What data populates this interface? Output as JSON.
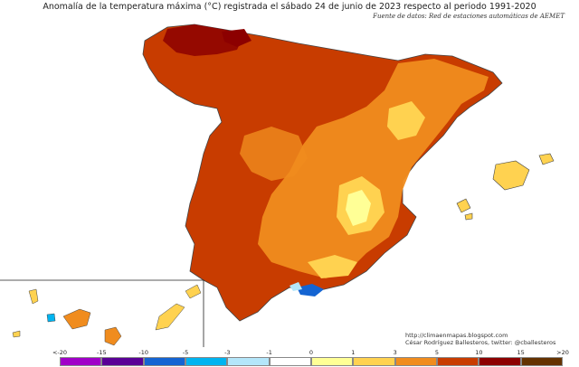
{
  "title": "Anomalía de la temperatura máxima (°C) registrada el sábado 24 de junio de 2023 respecto al periodo 1991-2020",
  "source": "Fuente de datos: Red de estaciones automáticas de AEMET",
  "credits": {
    "url": "http://climaenmapas.blogspot.com",
    "author": "César Rodríguez Ballesteros, twitter: @cballesteros"
  },
  "legend": {
    "ticks": [
      "<-20",
      "-15",
      "-10",
      "-5",
      "-3",
      "-1",
      "0",
      "1",
      "3",
      "5",
      "10",
      "15",
      ">20"
    ],
    "colors": [
      "#d97ef0",
      "#a000c8",
      "#5a0096",
      "#1464d2",
      "#00b4f0",
      "#b4e6fa",
      "#ffffff",
      "#ffff96",
      "#ffd250",
      "#f08c1e",
      "#c83c00",
      "#8c0000",
      "#643200"
    ]
  }
}
